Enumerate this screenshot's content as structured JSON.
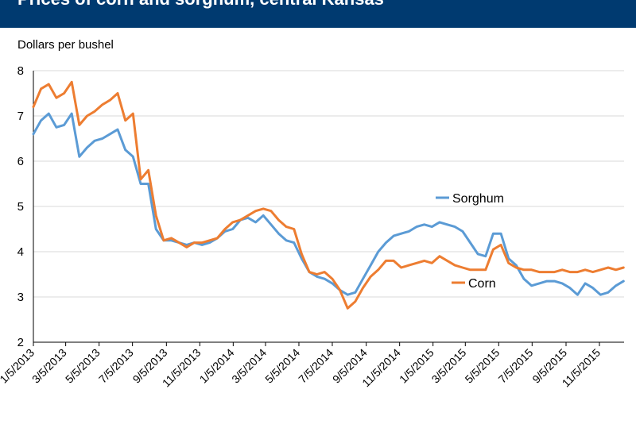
{
  "header": {
    "title": "Prices of corn and sorghum, central Kansas"
  },
  "colors": {
    "header_bg": "#003a70",
    "sorghum": "#5b9bd5",
    "corn": "#ed7d31",
    "grid": "#d9d9d9"
  },
  "chart_data": {
    "type": "line",
    "title": "Prices of corn and sorghum, central Kansas",
    "ylabel": "Dollars per bushel",
    "xlabel": "",
    "ylim": [
      2,
      8
    ],
    "yticks": [
      "2",
      "3",
      "4",
      "5",
      "6",
      "7",
      "8"
    ],
    "xticks": [
      "1/5/2013",
      "3/5/2013",
      "5/5/2013",
      "7/5/2013",
      "9/5/2013",
      "11/5/2013",
      "1/5/2014",
      "3/5/2014",
      "5/5/2014",
      "7/5/2014",
      "9/5/2014",
      "11/5/2014",
      "1/5/2015",
      "3/5/2015",
      "5/5/2015",
      "7/5/2015",
      "9/5/2015",
      "11/5/2015"
    ],
    "xlim": [
      "2013-01-05",
      "2015-12-20"
    ],
    "grid": true,
    "legend": "inline labels",
    "series": [
      {
        "name": "Sorghum",
        "color": "#5b9bd5",
        "x": [
          "2013-01-05",
          "2013-01-19",
          "2013-02-02",
          "2013-02-16",
          "2013-03-02",
          "2013-03-16",
          "2013-03-30",
          "2013-04-13",
          "2013-04-27",
          "2013-05-11",
          "2013-05-25",
          "2013-06-08",
          "2013-06-22",
          "2013-07-06",
          "2013-07-20",
          "2013-08-03",
          "2013-08-17",
          "2013-08-31",
          "2013-09-14",
          "2013-09-28",
          "2013-10-12",
          "2013-10-26",
          "2013-11-09",
          "2013-11-23",
          "2013-12-07",
          "2013-12-21",
          "2014-01-04",
          "2014-01-18",
          "2014-02-01",
          "2014-02-15",
          "2014-03-01",
          "2014-03-15",
          "2014-03-29",
          "2014-04-12",
          "2014-04-26",
          "2014-05-10",
          "2014-05-24",
          "2014-06-07",
          "2014-06-21",
          "2014-07-05",
          "2014-07-19",
          "2014-08-02",
          "2014-08-16",
          "2014-08-30",
          "2014-09-13",
          "2014-09-27",
          "2014-10-11",
          "2014-10-25",
          "2014-11-08",
          "2014-11-22",
          "2014-12-06",
          "2014-12-20",
          "2015-01-03",
          "2015-01-17",
          "2015-01-31",
          "2015-02-14",
          "2015-02-28",
          "2015-03-14",
          "2015-03-28",
          "2015-04-11",
          "2015-04-25",
          "2015-05-09",
          "2015-05-23",
          "2015-06-06",
          "2015-06-20",
          "2015-07-04",
          "2015-07-18",
          "2015-08-01",
          "2015-08-15",
          "2015-08-29",
          "2015-09-12",
          "2015-09-26",
          "2015-10-10",
          "2015-10-24",
          "2015-11-07",
          "2015-11-21",
          "2015-12-05",
          "2015-12-19"
        ],
        "y": [
          6.6,
          6.9,
          7.05,
          6.75,
          6.8,
          7.05,
          6.1,
          6.3,
          6.45,
          6.5,
          6.6,
          6.7,
          6.25,
          6.1,
          5.5,
          5.5,
          4.5,
          4.25,
          4.25,
          4.2,
          4.15,
          4.2,
          4.15,
          4.2,
          4.3,
          4.45,
          4.5,
          4.7,
          4.75,
          4.65,
          4.8,
          4.6,
          4.4,
          4.25,
          4.2,
          3.85,
          3.55,
          3.45,
          3.4,
          3.3,
          3.15,
          3.05,
          3.1,
          3.4,
          3.7,
          4.0,
          4.2,
          4.35,
          4.4,
          4.45,
          4.55,
          4.6,
          4.55,
          4.65,
          4.6,
          4.55,
          4.45,
          4.2,
          3.95,
          3.9,
          4.4,
          4.4,
          3.85,
          3.7,
          3.4,
          3.25,
          3.3,
          3.35,
          3.35,
          3.3,
          3.2,
          3.05,
          3.3,
          3.2,
          3.05,
          3.1,
          3.25,
          3.35
        ]
      },
      {
        "name": "Corn",
        "color": "#ed7d31",
        "x": [
          "2013-01-05",
          "2013-01-19",
          "2013-02-02",
          "2013-02-16",
          "2013-03-02",
          "2013-03-16",
          "2013-03-30",
          "2013-04-13",
          "2013-04-27",
          "2013-05-11",
          "2013-05-25",
          "2013-06-08",
          "2013-06-22",
          "2013-07-06",
          "2013-07-20",
          "2013-08-03",
          "2013-08-17",
          "2013-08-31",
          "2013-09-14",
          "2013-09-28",
          "2013-10-12",
          "2013-10-26",
          "2013-11-09",
          "2013-11-23",
          "2013-12-07",
          "2013-12-21",
          "2014-01-04",
          "2014-01-18",
          "2014-02-01",
          "2014-02-15",
          "2014-03-01",
          "2014-03-15",
          "2014-03-29",
          "2014-04-12",
          "2014-04-26",
          "2014-05-10",
          "2014-05-24",
          "2014-06-07",
          "2014-06-21",
          "2014-07-05",
          "2014-07-19",
          "2014-08-02",
          "2014-08-16",
          "2014-08-30",
          "2014-09-13",
          "2014-09-27",
          "2014-10-11",
          "2014-10-25",
          "2014-11-08",
          "2014-11-22",
          "2014-12-06",
          "2014-12-20",
          "2015-01-03",
          "2015-01-17",
          "2015-01-31",
          "2015-02-14",
          "2015-02-28",
          "2015-03-14",
          "2015-03-28",
          "2015-04-11",
          "2015-04-25",
          "2015-05-09",
          "2015-05-23",
          "2015-06-06",
          "2015-06-20",
          "2015-07-04",
          "2015-07-18",
          "2015-08-01",
          "2015-08-15",
          "2015-08-29",
          "2015-09-12",
          "2015-09-26",
          "2015-10-10",
          "2015-10-24",
          "2015-11-07",
          "2015-11-21",
          "2015-12-05",
          "2015-12-19"
        ],
        "y": [
          7.2,
          7.6,
          7.7,
          7.4,
          7.5,
          7.75,
          6.8,
          7.0,
          7.1,
          7.25,
          7.35,
          7.5,
          6.9,
          7.05,
          5.6,
          5.8,
          4.8,
          4.25,
          4.3,
          4.2,
          4.1,
          4.2,
          4.2,
          4.25,
          4.3,
          4.5,
          4.65,
          4.7,
          4.8,
          4.9,
          4.95,
          4.9,
          4.7,
          4.55,
          4.5,
          3.95,
          3.55,
          3.5,
          3.55,
          3.4,
          3.15,
          2.75,
          2.9,
          3.2,
          3.45,
          3.6,
          3.8,
          3.8,
          3.65,
          3.7,
          3.75,
          3.8,
          3.75,
          3.9,
          3.8,
          3.7,
          3.65,
          3.6,
          3.6,
          3.6,
          4.05,
          4.15,
          3.75,
          3.65,
          3.6,
          3.6,
          3.55,
          3.55,
          3.55,
          3.6,
          3.55,
          3.55,
          3.6,
          3.55,
          3.6,
          3.65,
          3.6,
          3.65
        ]
      }
    ]
  }
}
